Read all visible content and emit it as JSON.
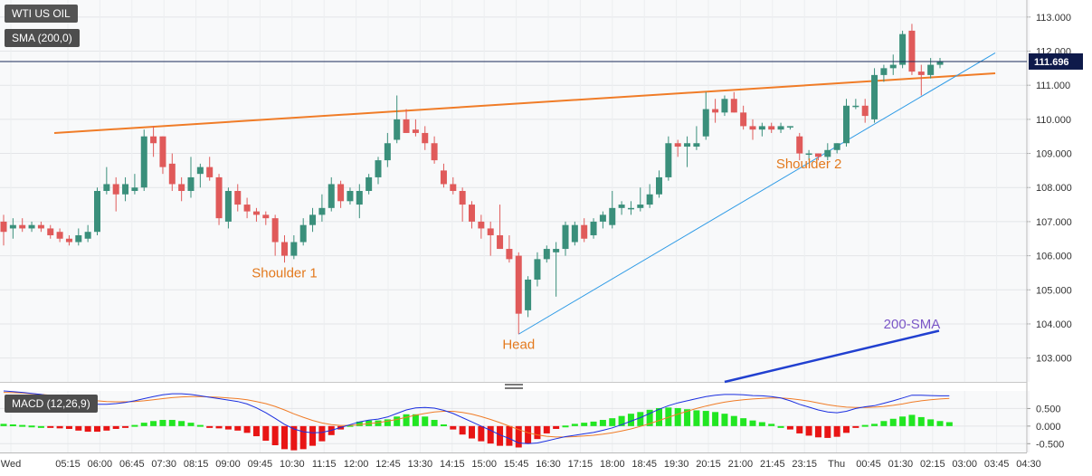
{
  "labels": {
    "symbol": "WTI US OIL",
    "sma_indicator": "SMA (200,0)",
    "macd_indicator": "MACD (12,26,9)",
    "price_tag": "111.696"
  },
  "colors": {
    "up_candle": "#3a8f7b",
    "down_candle": "#e05a5a",
    "neckline": "#f07c27",
    "trendline": "#2e9be6",
    "sma": "#2140d0",
    "sma_label": "#7b57c7",
    "macd_line": "#1b2fe0",
    "signal_line": "#f07c27",
    "hist_pos": "#22e622",
    "hist_neg": "#e81515",
    "price_tag_bg": "#0e1a4a"
  },
  "chart_data": [
    {
      "type": "candlestick",
      "title": "WTI US OIL",
      "ylim": [
        102.3,
        113.5
      ],
      "y_ticks": [
        "113.000",
        "112.000",
        "111.000",
        "110.000",
        "109.000",
        "108.000",
        "107.000",
        "106.000",
        "105.000",
        "104.000",
        "103.000"
      ],
      "x_ticks": [
        "Wed",
        "05:15",
        "06:00",
        "06:45",
        "07:30",
        "08:15",
        "09:00",
        "09:45",
        "10:30",
        "11:15",
        "12:00",
        "12:45",
        "13:30",
        "14:15",
        "15:00",
        "15:45",
        "16:30",
        "17:15",
        "18:00",
        "18:45",
        "19:30",
        "20:15",
        "21:00",
        "21:45",
        "23:15",
        "Thu",
        "00:45",
        "01:30",
        "02:15",
        "03:00",
        "03:45",
        "04:30"
      ],
      "current_price": 111.696,
      "candles": [
        {
          "o": 107.0,
          "h": 107.2,
          "l": 106.3,
          "c": 106.7
        },
        {
          "o": 106.8,
          "h": 107.1,
          "l": 106.5,
          "c": 106.9
        },
        {
          "o": 106.9,
          "h": 107.1,
          "l": 106.7,
          "c": 106.8
        },
        {
          "o": 106.8,
          "h": 107.0,
          "l": 106.7,
          "c": 106.9
        },
        {
          "o": 106.9,
          "h": 107.0,
          "l": 106.7,
          "c": 106.8
        },
        {
          "o": 106.8,
          "h": 106.9,
          "l": 106.5,
          "c": 106.6
        },
        {
          "o": 106.7,
          "h": 106.8,
          "l": 106.4,
          "c": 106.5
        },
        {
          "o": 106.5,
          "h": 106.6,
          "l": 106.3,
          "c": 106.4
        },
        {
          "o": 106.4,
          "h": 106.8,
          "l": 106.3,
          "c": 106.6
        },
        {
          "o": 106.5,
          "h": 106.9,
          "l": 106.4,
          "c": 106.7
        },
        {
          "o": 106.7,
          "h": 108.0,
          "l": 106.6,
          "c": 107.9
        },
        {
          "o": 107.9,
          "h": 108.6,
          "l": 107.8,
          "c": 108.1
        },
        {
          "o": 108.1,
          "h": 108.3,
          "l": 107.3,
          "c": 107.8
        },
        {
          "o": 107.8,
          "h": 108.3,
          "l": 107.6,
          "c": 108.1
        },
        {
          "o": 107.9,
          "h": 108.4,
          "l": 107.8,
          "c": 108.0
        },
        {
          "o": 108.0,
          "h": 109.7,
          "l": 107.9,
          "c": 109.5
        },
        {
          "o": 109.5,
          "h": 109.8,
          "l": 108.9,
          "c": 109.3
        },
        {
          "o": 109.5,
          "h": 109.5,
          "l": 108.4,
          "c": 108.6
        },
        {
          "o": 108.7,
          "h": 109.0,
          "l": 107.9,
          "c": 108.1
        },
        {
          "o": 108.1,
          "h": 108.3,
          "l": 107.6,
          "c": 107.9
        },
        {
          "o": 107.9,
          "h": 108.9,
          "l": 107.7,
          "c": 108.3
        },
        {
          "o": 108.4,
          "h": 108.7,
          "l": 108.0,
          "c": 108.6
        },
        {
          "o": 108.6,
          "h": 108.9,
          "l": 108.2,
          "c": 108.3
        },
        {
          "o": 108.3,
          "h": 108.4,
          "l": 106.9,
          "c": 107.1
        },
        {
          "o": 107.0,
          "h": 108.0,
          "l": 106.8,
          "c": 107.9
        },
        {
          "o": 107.9,
          "h": 108.1,
          "l": 107.3,
          "c": 107.5
        },
        {
          "o": 107.5,
          "h": 107.7,
          "l": 107.1,
          "c": 107.3
        },
        {
          "o": 107.3,
          "h": 107.4,
          "l": 107.0,
          "c": 107.2
        },
        {
          "o": 107.2,
          "h": 107.3,
          "l": 106.9,
          "c": 107.1
        },
        {
          "o": 107.1,
          "h": 107.2,
          "l": 106.0,
          "c": 106.4
        },
        {
          "o": 106.4,
          "h": 106.6,
          "l": 105.8,
          "c": 106.0
        },
        {
          "o": 106.0,
          "h": 106.6,
          "l": 105.9,
          "c": 106.4
        },
        {
          "o": 106.4,
          "h": 107.1,
          "l": 106.3,
          "c": 106.9
        },
        {
          "o": 106.9,
          "h": 107.4,
          "l": 106.7,
          "c": 107.2
        },
        {
          "o": 107.2,
          "h": 107.8,
          "l": 107.0,
          "c": 107.4
        },
        {
          "o": 107.4,
          "h": 108.3,
          "l": 107.3,
          "c": 108.1
        },
        {
          "o": 108.1,
          "h": 108.2,
          "l": 107.4,
          "c": 107.6
        },
        {
          "o": 107.6,
          "h": 108.0,
          "l": 107.5,
          "c": 107.9
        },
        {
          "o": 107.5,
          "h": 108.1,
          "l": 107.1,
          "c": 107.9
        },
        {
          "o": 107.9,
          "h": 108.4,
          "l": 107.8,
          "c": 108.3
        },
        {
          "o": 108.3,
          "h": 108.9,
          "l": 108.1,
          "c": 108.8
        },
        {
          "o": 108.8,
          "h": 109.6,
          "l": 108.6,
          "c": 109.3
        },
        {
          "o": 109.4,
          "h": 110.7,
          "l": 109.3,
          "c": 110.0
        },
        {
          "o": 110.0,
          "h": 110.3,
          "l": 109.6,
          "c": 109.6
        },
        {
          "o": 109.7,
          "h": 110.0,
          "l": 109.5,
          "c": 109.6
        },
        {
          "o": 109.6,
          "h": 109.8,
          "l": 109.1,
          "c": 109.3
        },
        {
          "o": 109.3,
          "h": 109.5,
          "l": 108.7,
          "c": 108.8
        },
        {
          "o": 108.5,
          "h": 108.7,
          "l": 108.0,
          "c": 108.1
        },
        {
          "o": 108.1,
          "h": 108.3,
          "l": 107.8,
          "c": 107.9
        },
        {
          "o": 107.9,
          "h": 108.0,
          "l": 107.0,
          "c": 107.5
        },
        {
          "o": 107.5,
          "h": 107.6,
          "l": 106.8,
          "c": 107.0
        },
        {
          "o": 107.0,
          "h": 107.2,
          "l": 106.5,
          "c": 106.8
        },
        {
          "o": 106.8,
          "h": 107.0,
          "l": 106.0,
          "c": 106.6
        },
        {
          "o": 106.6,
          "h": 107.5,
          "l": 106.2,
          "c": 106.2
        },
        {
          "o": 106.2,
          "h": 106.6,
          "l": 105.8,
          "c": 105.9
        },
        {
          "o": 106.0,
          "h": 106.1,
          "l": 103.7,
          "c": 104.3
        },
        {
          "o": 104.4,
          "h": 105.4,
          "l": 104.2,
          "c": 105.3
        },
        {
          "o": 105.3,
          "h": 106.1,
          "l": 105.1,
          "c": 105.9
        },
        {
          "o": 105.9,
          "h": 106.3,
          "l": 105.8,
          "c": 106.2
        },
        {
          "o": 106.1,
          "h": 106.4,
          "l": 104.8,
          "c": 106.2
        },
        {
          "o": 106.2,
          "h": 107.0,
          "l": 106.0,
          "c": 106.9
        },
        {
          "o": 106.4,
          "h": 107.0,
          "l": 106.3,
          "c": 106.9
        },
        {
          "o": 106.9,
          "h": 107.1,
          "l": 106.4,
          "c": 106.5
        },
        {
          "o": 106.6,
          "h": 107.1,
          "l": 106.5,
          "c": 107.0
        },
        {
          "o": 107.0,
          "h": 107.3,
          "l": 106.8,
          "c": 107.2
        },
        {
          "o": 106.9,
          "h": 107.9,
          "l": 106.8,
          "c": 107.4
        },
        {
          "o": 107.4,
          "h": 107.6,
          "l": 107.2,
          "c": 107.5
        },
        {
          "o": 107.4,
          "h": 107.6,
          "l": 107.2,
          "c": 107.4
        },
        {
          "o": 107.4,
          "h": 108.0,
          "l": 107.3,
          "c": 107.5
        },
        {
          "o": 107.5,
          "h": 108.1,
          "l": 107.4,
          "c": 107.8
        },
        {
          "o": 107.8,
          "h": 108.5,
          "l": 107.7,
          "c": 108.3
        },
        {
          "o": 108.3,
          "h": 109.5,
          "l": 108.2,
          "c": 109.3
        },
        {
          "o": 109.3,
          "h": 109.4,
          "l": 108.9,
          "c": 109.2
        },
        {
          "o": 109.2,
          "h": 109.5,
          "l": 108.6,
          "c": 109.3
        },
        {
          "o": 109.2,
          "h": 109.8,
          "l": 109.1,
          "c": 109.3
        },
        {
          "o": 109.5,
          "h": 110.8,
          "l": 109.4,
          "c": 110.3
        },
        {
          "o": 110.3,
          "h": 110.6,
          "l": 109.9,
          "c": 110.2
        },
        {
          "o": 110.2,
          "h": 110.7,
          "l": 110.1,
          "c": 110.6
        },
        {
          "o": 110.6,
          "h": 110.8,
          "l": 110.2,
          "c": 110.2
        },
        {
          "o": 110.2,
          "h": 110.4,
          "l": 109.7,
          "c": 109.8
        },
        {
          "o": 109.8,
          "h": 110.0,
          "l": 109.4,
          "c": 109.7
        },
        {
          "o": 109.7,
          "h": 109.9,
          "l": 109.5,
          "c": 109.8
        },
        {
          "o": 109.8,
          "h": 109.9,
          "l": 109.6,
          "c": 109.7
        },
        {
          "o": 109.7,
          "h": 109.9,
          "l": 109.6,
          "c": 109.8
        },
        {
          "o": 109.8,
          "h": 109.8,
          "l": 109.7,
          "c": 109.8
        },
        {
          "o": 109.5,
          "h": 109.6,
          "l": 108.8,
          "c": 109.0
        },
        {
          "o": 109.0,
          "h": 109.1,
          "l": 108.8,
          "c": 109.0
        },
        {
          "o": 109.0,
          "h": 109.0,
          "l": 108.8,
          "c": 108.9
        },
        {
          "o": 108.9,
          "h": 109.3,
          "l": 108.8,
          "c": 109.1
        },
        {
          "o": 109.1,
          "h": 109.3,
          "l": 109.0,
          "c": 109.3
        },
        {
          "o": 109.3,
          "h": 110.6,
          "l": 109.2,
          "c": 110.4
        },
        {
          "o": 110.4,
          "h": 110.6,
          "l": 110.3,
          "c": 110.4
        },
        {
          "o": 110.4,
          "h": 110.6,
          "l": 109.9,
          "c": 110.1
        },
        {
          "o": 110.0,
          "h": 111.5,
          "l": 109.9,
          "c": 111.3
        },
        {
          "o": 111.3,
          "h": 111.6,
          "l": 111.1,
          "c": 111.5
        },
        {
          "o": 111.5,
          "h": 111.9,
          "l": 111.3,
          "c": 111.6
        },
        {
          "o": 111.6,
          "h": 112.6,
          "l": 111.5,
          "c": 112.5
        },
        {
          "o": 112.6,
          "h": 112.8,
          "l": 111.3,
          "c": 111.4
        },
        {
          "o": 111.4,
          "h": 111.6,
          "l": 110.7,
          "c": 111.3
        },
        {
          "o": 111.3,
          "h": 111.8,
          "l": 111.2,
          "c": 111.6
        },
        {
          "o": 111.6,
          "h": 111.8,
          "l": 111.5,
          "c": 111.7
        }
      ],
      "lines": [
        {
          "name": "neckline",
          "points": [
            [
              0,
              109.6
            ],
            [
              103,
              111.35
            ]
          ]
        },
        {
          "name": "trendline",
          "points": [
            [
              55,
              103.7
            ],
            [
              103,
              111.95
            ]
          ]
        },
        {
          "name": "sma200",
          "points": [
            [
              77,
              102.3
            ],
            [
              97,
              103.8
            ]
          ]
        }
      ],
      "annotations": [
        {
          "text": "Shoulder 1",
          "index": 30,
          "price": 105.5
        },
        {
          "text": "Head",
          "index": 55,
          "price": 103.4
        },
        {
          "text": "Shoulder 2",
          "index": 86,
          "price": 108.7
        },
        {
          "text": "200-SMA",
          "index": 97,
          "price": 104.0
        }
      ]
    },
    {
      "type": "macd",
      "title": "MACD (12,26,9)",
      "ylim": [
        -0.75,
        1.0
      ],
      "y_ticks": [
        "0.500",
        "0.000",
        "-0.500"
      ],
      "macd": [
        1.0,
        0.98,
        0.96,
        0.93,
        0.9,
        0.86,
        0.82,
        0.78,
        0.72,
        0.66,
        0.62,
        0.62,
        0.64,
        0.67,
        0.72,
        0.78,
        0.84,
        0.89,
        0.92,
        0.92,
        0.9,
        0.86,
        0.82,
        0.78,
        0.74,
        0.7,
        0.63,
        0.52,
        0.38,
        0.22,
        0.05,
        -0.08,
        -0.16,
        -0.19,
        -0.18,
        -0.12,
        -0.04,
        0.04,
        0.12,
        0.17,
        0.2,
        0.26,
        0.36,
        0.46,
        0.52,
        0.53,
        0.51,
        0.45,
        0.36,
        0.24,
        0.12,
        0.0,
        -0.12,
        -0.25,
        -0.35,
        -0.48,
        -0.5,
        -0.48,
        -0.42,
        -0.36,
        -0.3,
        -0.26,
        -0.22,
        -0.18,
        -0.12,
        -0.05,
        0.04,
        0.14,
        0.24,
        0.36,
        0.48,
        0.58,
        0.66,
        0.72,
        0.78,
        0.84,
        0.88,
        0.9,
        0.9,
        0.89,
        0.87,
        0.86,
        0.84,
        0.8,
        0.72,
        0.62,
        0.54,
        0.46,
        0.4,
        0.38,
        0.42,
        0.5,
        0.55,
        0.58,
        0.65,
        0.72,
        0.8,
        0.88,
        0.88,
        0.87,
        0.86,
        0.86
      ],
      "signal": [
        0.96,
        0.95,
        0.94,
        0.92,
        0.9,
        0.88,
        0.86,
        0.83,
        0.8,
        0.76,
        0.72,
        0.7,
        0.69,
        0.69,
        0.7,
        0.72,
        0.75,
        0.78,
        0.81,
        0.83,
        0.84,
        0.84,
        0.83,
        0.82,
        0.8,
        0.78,
        0.75,
        0.7,
        0.64,
        0.56,
        0.46,
        0.35,
        0.25,
        0.16,
        0.09,
        0.04,
        0.02,
        0.02,
        0.04,
        0.07,
        0.1,
        0.14,
        0.19,
        0.25,
        0.31,
        0.36,
        0.4,
        0.42,
        0.42,
        0.39,
        0.34,
        0.27,
        0.19,
        0.1,
        0.0,
        -0.1,
        -0.19,
        -0.25,
        -0.29,
        -0.31,
        -0.31,
        -0.3,
        -0.28,
        -0.26,
        -0.23,
        -0.19,
        -0.14,
        -0.08,
        -0.01,
        0.07,
        0.16,
        0.25,
        0.34,
        0.42,
        0.5,
        0.57,
        0.63,
        0.68,
        0.72,
        0.75,
        0.77,
        0.79,
        0.8,
        0.8,
        0.78,
        0.75,
        0.71,
        0.66,
        0.61,
        0.57,
        0.54,
        0.53,
        0.53,
        0.54,
        0.56,
        0.59,
        0.63,
        0.68,
        0.72,
        0.75,
        0.77,
        0.79
      ]
    }
  ]
}
